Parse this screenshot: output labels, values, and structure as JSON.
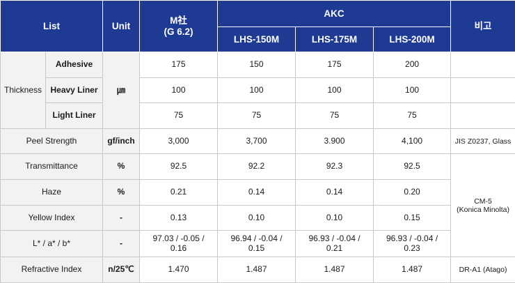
{
  "header": {
    "list": "List",
    "unit": "Unit",
    "m_company_line1": "M社",
    "m_company_line2": "(G 6.2)",
    "akc": "AKC",
    "products": [
      "LHS-150M",
      "LHS-175M",
      "LHS-200M"
    ],
    "remark": "비고"
  },
  "thickness": {
    "label": "Thickness",
    "unit": "㎛",
    "rows": [
      {
        "sub": "Adhesive",
        "values": [
          "175",
          "150",
          "175",
          "200"
        ]
      },
      {
        "sub": "Heavy Liner",
        "values": [
          "100",
          "100",
          "100",
          "100"
        ]
      },
      {
        "sub": "Light Liner",
        "values": [
          "75",
          "75",
          "75",
          "75"
        ]
      }
    ]
  },
  "peel": {
    "label": "Peel Strength",
    "unit": "gf/inch",
    "values": [
      "3,000",
      "3,700",
      "3.900",
      "4,100"
    ],
    "remark": "JIS Z0237, Glass"
  },
  "transmittance": {
    "label": "Transmittance",
    "unit": "%",
    "values": [
      "92.5",
      "92.2",
      "92.3",
      "92.5"
    ]
  },
  "haze": {
    "label": "Haze",
    "unit": "%",
    "values": [
      "0.21",
      "0.14",
      "0.14",
      "0.20"
    ]
  },
  "yellow": {
    "label": "Yellow Index",
    "unit": "-",
    "values": [
      "0.13",
      "0.10",
      "0.10",
      "0.15"
    ]
  },
  "lab": {
    "label": "L* / a* / b*",
    "unit": "-",
    "values": [
      [
        "97.03 / -0.05 /",
        "0.16"
      ],
      [
        "96.94 / -0.04 /",
        "0.15"
      ],
      [
        "96.93 / -0.04 /",
        "0.21"
      ],
      [
        "96.93 / -0.04 /",
        "0.23"
      ]
    ]
  },
  "remark_cm": {
    "line1": "CM-5",
    "line2": "(Konica Minolta)"
  },
  "refractive": {
    "label": "Refractive Index",
    "unit": "n/25℃",
    "values": [
      "1.470",
      "1.487",
      "1.487",
      "1.487"
    ],
    "remark": "DR-A1 (Atago)"
  },
  "colors": {
    "header_bg": "#1f3a93",
    "header_text": "#ffffff",
    "label_bg": "#f2f2f2",
    "border": "#c8c8c8"
  }
}
